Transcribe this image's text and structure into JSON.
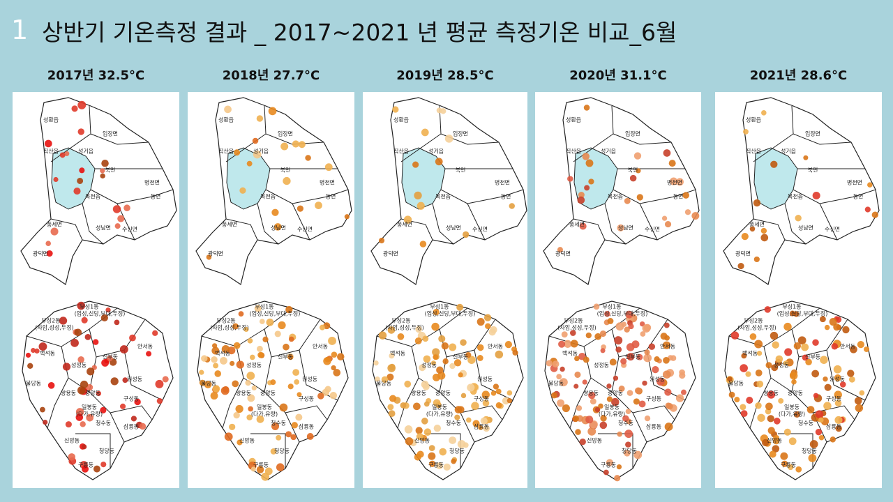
{
  "slide": {
    "number": "1",
    "title": "상반기 기온측정 결과 _ 2017~2021 년 평균 측정기온 비교_6월"
  },
  "panels": [
    {
      "label": "2017년 32.5°C"
    },
    {
      "label": "2018년 27.7°C"
    },
    {
      "label": "2019년 28.5°C"
    },
    {
      "label": "2020년 31.1°C"
    },
    {
      "label": "2021년 28.6°C"
    }
  ],
  "upper_regions": [
    "성환읍",
    "입장면",
    "직산읍",
    "성거읍",
    "북면",
    "병천면",
    "목천읍",
    "동면",
    "풍세면",
    "성남면",
    "수신면",
    "광덕면"
  ],
  "lower_regions": [
    "부성1동",
    "(업성,신당,부대,두정)",
    "부성2동",
    "(차암,성성,두정)",
    "안서동",
    "백석동",
    "신부동",
    "성정동",
    "원성동",
    "불당동",
    "쌍용동",
    "중앙동",
    "구성동",
    "일봉동",
    "(다가,유량)",
    "청수동",
    "삼룡동",
    "신방동",
    "청당동",
    "구룡동"
  ]
}
